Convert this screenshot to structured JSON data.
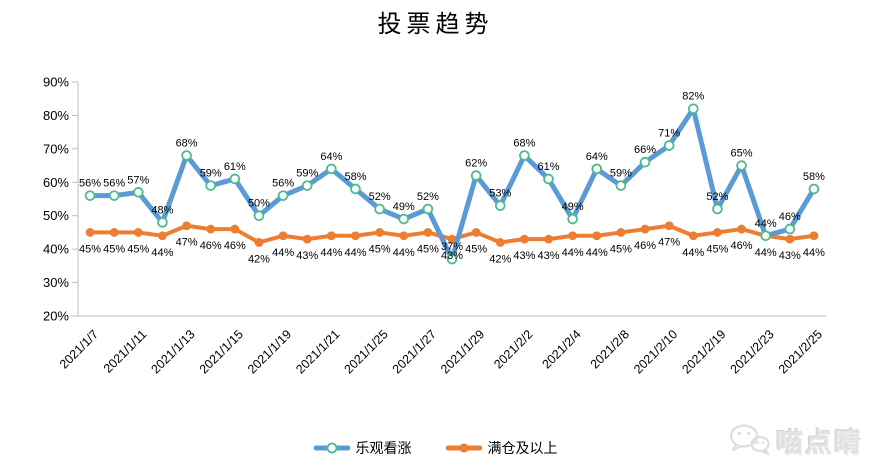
{
  "watermark": {
    "text": "喵点睛",
    "icon": "wechat-icon"
  },
  "chart_data": {
    "type": "line",
    "title": "投票趋势",
    "x_tick_labels": [
      "2021/1/7",
      "2021/1/11",
      "2021/1/13",
      "2021/1/15",
      "2021/1/19",
      "2021/1/21",
      "2021/1/25",
      "2021/1/27",
      "2021/1/29",
      "2021/2/2",
      "2021/2/4",
      "2021/2/8",
      "2021/2/10",
      "2021/2/19",
      "2021/2/23",
      "2021/2/25"
    ],
    "x_label_every_n_points": 2,
    "n_points": 31,
    "series": [
      {
        "name": "乐观看涨",
        "color": "#5B9BD5",
        "marker": "open-circle",
        "marker_fill": "#FFFFFF",
        "marker_ring": "#4CBB8C",
        "data_label_position": "above",
        "values": [
          56,
          56,
          57,
          48,
          68,
          59,
          61,
          50,
          56,
          59,
          64,
          58,
          52,
          49,
          52,
          37,
          62,
          53,
          68,
          61,
          49,
          64,
          59,
          66,
          71,
          82,
          52,
          65,
          44,
          46,
          58
        ]
      },
      {
        "name": "满仓及以上",
        "color": "#ED7D31",
        "marker": "filled-circle",
        "marker_fill": "#ED7D31",
        "data_label_position": "below",
        "values": [
          45,
          45,
          45,
          44,
          47,
          46,
          46,
          42,
          44,
          43,
          44,
          44,
          45,
          44,
          45,
          43,
          45,
          42,
          43,
          43,
          44,
          44,
          45,
          46,
          47,
          44,
          45,
          46,
          44,
          43,
          44
        ]
      }
    ],
    "y_axis": {
      "min": 20,
      "max": 90,
      "step": 10,
      "unit": "%",
      "tick_labels": [
        "90%",
        "80%",
        "70%",
        "60%",
        "50%",
        "40%",
        "30%",
        "20%"
      ]
    },
    "data_label_format": "{v}%",
    "grid": false,
    "legend_position": "bottom",
    "colors": {
      "axis_line": "#BFBFBF",
      "label_text": "#000000"
    }
  }
}
